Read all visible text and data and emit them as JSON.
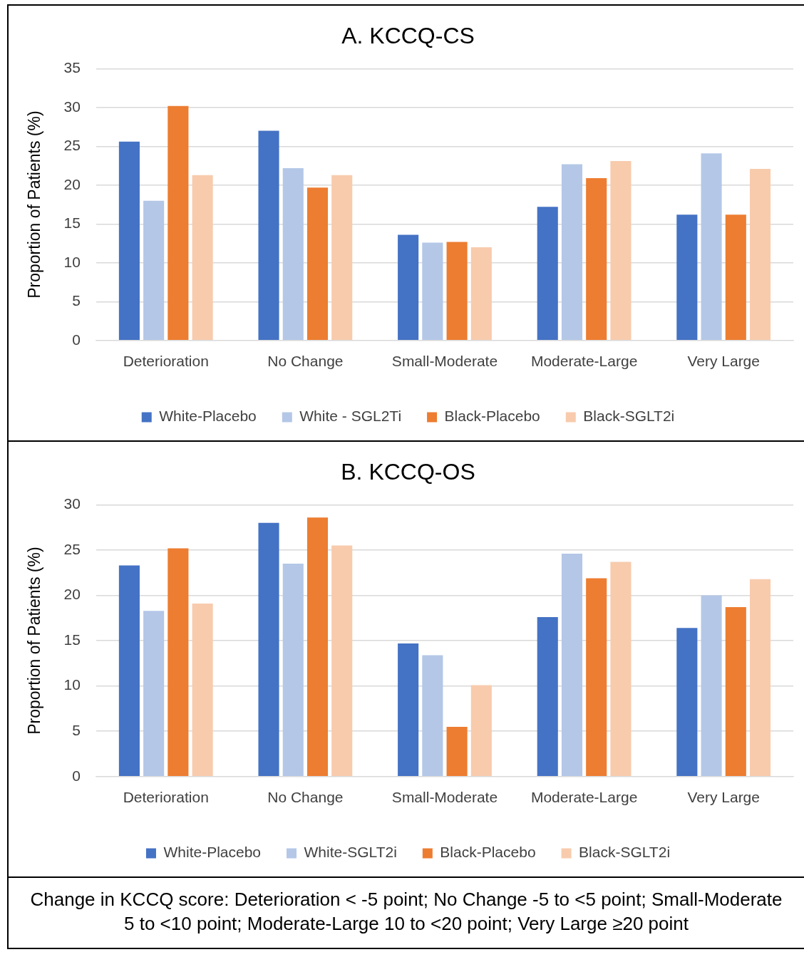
{
  "chart_data": [
    {
      "type": "bar",
      "title": "A. KCCQ-CS",
      "ylabel": "Proportion of Patients (%)",
      "categories": [
        "Deterioration",
        "No Change",
        "Small-Moderate",
        "Moderate-Large",
        "Very Large"
      ],
      "series": [
        {
          "name": "White-Placebo",
          "color": "#4472c4",
          "values": [
            25.6,
            27.0,
            13.6,
            17.2,
            16.2
          ]
        },
        {
          "name": "White - SGL2Ti",
          "color": "#b4c7e7",
          "values": [
            18.0,
            22.2,
            12.6,
            22.7,
            24.1
          ]
        },
        {
          "name": "Black-Placebo",
          "color": "#ed7d31",
          "values": [
            30.2,
            19.7,
            12.7,
            20.9,
            16.2
          ]
        },
        {
          "name": "Black-SGLT2i",
          "color": "#f8cbad",
          "values": [
            21.3,
            21.3,
            12.0,
            23.1,
            22.1
          ]
        }
      ],
      "ylim": [
        0,
        35
      ],
      "yticks": [
        0,
        5,
        10,
        15,
        20,
        25,
        30,
        35
      ],
      "grid": "y",
      "legend": "bottom"
    },
    {
      "type": "bar",
      "title": "B. KCCQ-OS",
      "ylabel": "Proportion of Patients (%)",
      "categories": [
        "Deterioration",
        "No Change",
        "Small-Moderate",
        "Moderate-Large",
        "Very Large"
      ],
      "series": [
        {
          "name": "White-Placebo",
          "color": "#4472c4",
          "values": [
            23.3,
            28.0,
            14.7,
            17.6,
            16.4
          ]
        },
        {
          "name": "White-SGLT2i",
          "color": "#b4c7e7",
          "values": [
            18.3,
            23.5,
            13.4,
            24.6,
            20.0
          ]
        },
        {
          "name": "Black-Placebo",
          "color": "#ed7d31",
          "values": [
            25.2,
            28.6,
            5.5,
            21.9,
            18.7
          ]
        },
        {
          "name": "Black-SGLT2i",
          "color": "#f8cbad",
          "values": [
            19.1,
            25.5,
            10.1,
            23.7,
            21.8
          ]
        }
      ],
      "ylim": [
        0,
        30
      ],
      "yticks": [
        0,
        5,
        10,
        15,
        20,
        25,
        30
      ],
      "grid": "y",
      "legend": "bottom",
      "annotations": [
        "Change in KCCQ score: Deterioration < -5 point; No Change -5 to <5 point; Small-Moderate 5 to <10 point; Moderate-Large 10 to <20 point; Very Large ≥20 point"
      ]
    }
  ]
}
